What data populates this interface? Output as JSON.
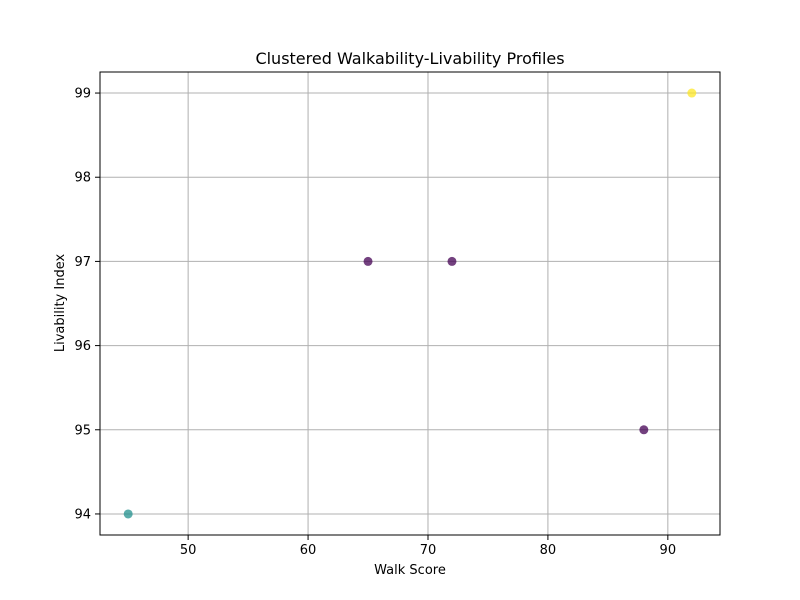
{
  "chart_data": {
    "type": "scatter",
    "title": "Clustered Walkability-Livability Profiles",
    "xlabel": "Walk Score",
    "ylabel": "Livability Index",
    "xlim": [
      42.65,
      94.35
    ],
    "ylim": [
      93.75,
      99.25
    ],
    "xticks": [
      50,
      60,
      70,
      80,
      90
    ],
    "yticks": [
      94,
      95,
      96,
      97,
      98,
      99
    ],
    "grid": true,
    "legend": "none",
    "series": [
      {
        "points": [
          {
            "x": 45,
            "y": 94,
            "color": "#21908d"
          },
          {
            "x": 65,
            "y": 97,
            "color": "#440154"
          },
          {
            "x": 72,
            "y": 97,
            "color": "#440154"
          },
          {
            "x": 88,
            "y": 95,
            "color": "#440154"
          },
          {
            "x": 92,
            "y": 99,
            "color": "#fde725"
          }
        ]
      }
    ]
  },
  "colors": {
    "grid": "#b0b0b0",
    "axes": "#000000",
    "background": "#ffffff"
  }
}
